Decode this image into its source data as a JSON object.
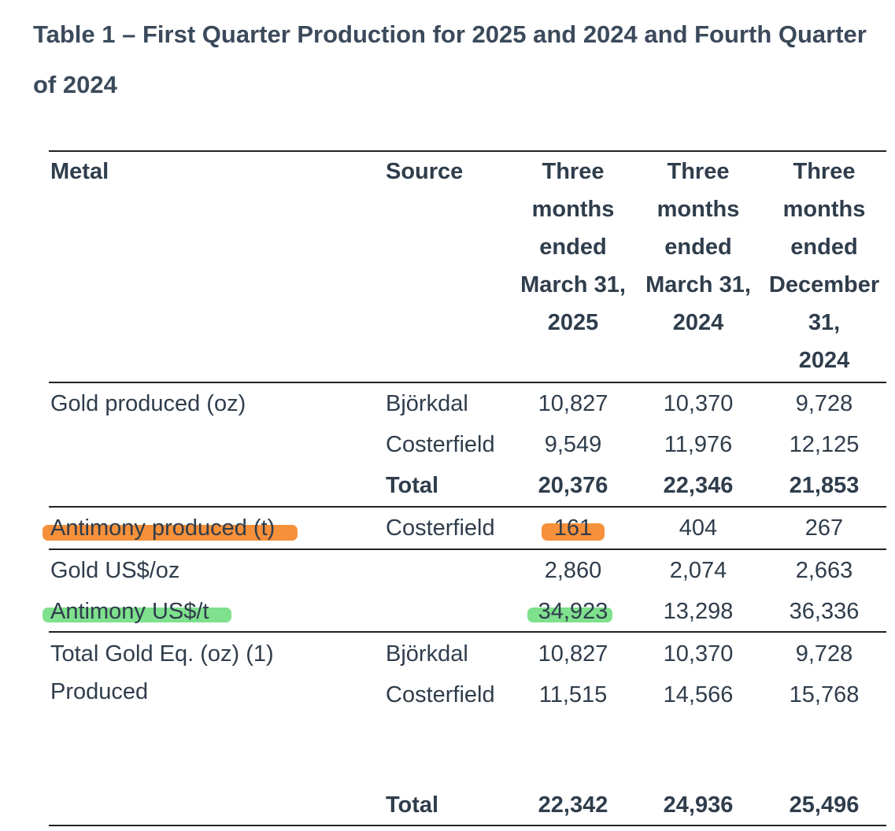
{
  "title": "Table 1 – First Quarter Production for 2025 and 2024 and Fourth Quarter of 2024",
  "headers": {
    "metal": "Metal",
    "source": "Source",
    "col1": [
      "Three",
      "months",
      "ended",
      "March 31,",
      "2025"
    ],
    "col2": [
      "Three",
      "months",
      "ended",
      "March 31,",
      "2024"
    ],
    "col3": [
      "Three",
      "months",
      "ended",
      "December",
      "31,",
      "2024"
    ]
  },
  "gold_produced": {
    "label": "Gold produced (oz)",
    "rows": [
      {
        "source": "Björkdal",
        "v1": "10,827",
        "v2": "10,370",
        "v3": "9,728"
      },
      {
        "source": "Costerfield",
        "v1": "9,549",
        "v2": "11,976",
        "v3": "12,125"
      },
      {
        "source": "Total",
        "v1": "20,376",
        "v2": "22,346",
        "v3": "21,853"
      }
    ]
  },
  "antimony_produced": {
    "label": "Antimony produced (t)",
    "source": "Costerfield",
    "v1": "161",
    "v2": "404",
    "v3": "267"
  },
  "prices": [
    {
      "label": "Gold US$/oz",
      "v1": "2,860",
      "v2": "2,074",
      "v3": "2,663"
    },
    {
      "label": "Antimony US$/t",
      "v1": "34,923",
      "v2": "13,298",
      "v3": "36,336"
    }
  ],
  "gold_eq": {
    "label_line1": "Total Gold Eq. (oz) (1)",
    "label_line2": "Produced",
    "rows": [
      {
        "source": "Björkdal",
        "v1": "10,827",
        "v2": "10,370",
        "v3": "9,728"
      },
      {
        "source": "Costerfield",
        "v1": "11,515",
        "v2": "14,566",
        "v3": "15,768"
      },
      {
        "source": "Total",
        "v1": "22,342",
        "v2": "24,936",
        "v3": "25,496"
      }
    ]
  },
  "highlight_colors": {
    "orange": "#f7903a",
    "green": "#7fe08d"
  }
}
